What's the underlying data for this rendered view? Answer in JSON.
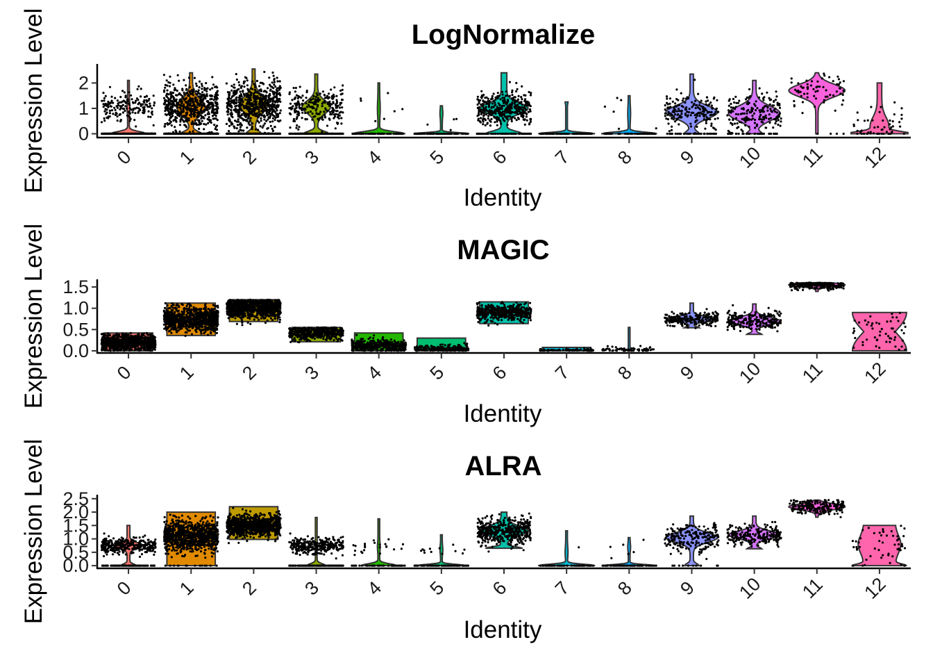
{
  "colors": {
    "palette": [
      "#F8766D",
      "#E18A00",
      "#BE9C00",
      "#8CAB00",
      "#24B700",
      "#00BE70",
      "#00C1AB",
      "#00BBDA",
      "#00ACFC",
      "#8B93FF",
      "#D575FE",
      "#F962DD",
      "#FF65AC"
    ],
    "points": "#000000",
    "axis": "#000000"
  },
  "chart_data": [
    {
      "type": "violin",
      "title": "LogNormalize",
      "xlabel": "Identity",
      "ylabel": "Expression Level",
      "categories": [
        "0",
        "1",
        "2",
        "3",
        "4",
        "5",
        "6",
        "7",
        "8",
        "9",
        "10",
        "11",
        "12"
      ],
      "ylim": [
        -0.15,
        2.75
      ],
      "yticks": [
        0,
        1,
        2
      ],
      "ytick_labels": [
        "0",
        "1",
        "2"
      ],
      "series": [
        {
          "cluster": "0",
          "max": 2.1,
          "zero_frac": 0.6,
          "mode": 1.05,
          "spread": 0.3,
          "density": "high",
          "violin": "spike"
        },
        {
          "cluster": "1",
          "max": 2.4,
          "zero_frac": 0.35,
          "mode": 1.05,
          "spread": 0.45,
          "density": "very-high",
          "violin": "zero-bulge"
        },
        {
          "cluster": "2",
          "max": 2.55,
          "zero_frac": 0.25,
          "mode": 1.15,
          "spread": 0.45,
          "density": "very-high",
          "violin": "zero-bulge"
        },
        {
          "cluster": "3",
          "max": 2.35,
          "zero_frac": 0.45,
          "mode": 1.05,
          "spread": 0.35,
          "density": "high",
          "violin": "zero-bulge"
        },
        {
          "cluster": "4",
          "max": 2.0,
          "zero_frac": 0.9,
          "mode": 1.0,
          "spread": 0.4,
          "density": "low",
          "violin": "spike"
        },
        {
          "cluster": "5",
          "max": 1.1,
          "zero_frac": 0.95,
          "mode": 0.8,
          "spread": 0.25,
          "density": "low",
          "violin": "spike"
        },
        {
          "cluster": "6",
          "max": 2.4,
          "zero_frac": 0.15,
          "mode": 1.0,
          "spread": 0.3,
          "density": "high",
          "violin": "hourglass"
        },
        {
          "cluster": "7",
          "max": 1.25,
          "zero_frac": 0.99,
          "mode": 1.25,
          "spread": 0.1,
          "density": "low",
          "violin": "spike"
        },
        {
          "cluster": "8",
          "max": 1.5,
          "zero_frac": 0.95,
          "mode": 0.8,
          "spread": 0.4,
          "density": "low",
          "violin": "spike"
        },
        {
          "cluster": "9",
          "max": 2.35,
          "zero_frac": 0.2,
          "mode": 0.85,
          "spread": 0.35,
          "density": "medium",
          "violin": "bulb"
        },
        {
          "cluster": "10",
          "max": 2.1,
          "zero_frac": 0.2,
          "mode": 0.8,
          "spread": 0.4,
          "density": "medium",
          "violin": "bulb"
        },
        {
          "cluster": "11",
          "max": 2.4,
          "zero_frac": 0.05,
          "mode": 1.7,
          "spread": 0.35,
          "density": "low",
          "violin": "top-bulb"
        },
        {
          "cluster": "12",
          "max": 2.0,
          "zero_frac": 0.3,
          "mode": 0.3,
          "spread": 0.5,
          "density": "sparse",
          "violin": "bottom-bulb"
        }
      ]
    },
    {
      "type": "violin",
      "title": "MAGIC",
      "xlabel": "Identity",
      "ylabel": "Expression Level",
      "categories": [
        "0",
        "1",
        "2",
        "3",
        "4",
        "5",
        "6",
        "7",
        "8",
        "9",
        "10",
        "11",
        "12"
      ],
      "ylim": [
        -0.05,
        1.68
      ],
      "yticks": [
        0,
        0.5,
        1.0,
        1.5
      ],
      "ytick_labels": [
        "0.0",
        "0.5",
        "1.0",
        "1.5"
      ],
      "series": [
        {
          "cluster": "0",
          "max": 0.42,
          "zero_frac": 0,
          "mode": 0.2,
          "spread": 0.1,
          "density": "very-high",
          "violin": "box"
        },
        {
          "cluster": "1",
          "max": 1.12,
          "zero_frac": 0,
          "mode": 0.75,
          "spread": 0.15,
          "density": "very-high",
          "violin": "box"
        },
        {
          "cluster": "2",
          "max": 1.2,
          "zero_frac": 0,
          "mode": 1.0,
          "spread": 0.12,
          "density": "very-high",
          "violin": "box"
        },
        {
          "cluster": "3",
          "max": 0.55,
          "zero_frac": 0,
          "mode": 0.42,
          "spread": 0.08,
          "density": "high",
          "violin": "box"
        },
        {
          "cluster": "4",
          "max": 0.42,
          "zero_frac": 0,
          "mode": 0.12,
          "spread": 0.08,
          "density": "high",
          "violin": "box"
        },
        {
          "cluster": "5",
          "max": 0.3,
          "zero_frac": 0,
          "mode": 0.04,
          "spread": 0.05,
          "density": "medium",
          "violin": "box"
        },
        {
          "cluster": "6",
          "max": 1.15,
          "zero_frac": 0,
          "mode": 0.9,
          "spread": 0.1,
          "density": "high",
          "violin": "box"
        },
        {
          "cluster": "7",
          "max": 0.08,
          "zero_frac": 0,
          "mode": 0.01,
          "spread": 0.02,
          "density": "low",
          "violin": "box"
        },
        {
          "cluster": "8",
          "max": 0.55,
          "zero_frac": 0,
          "mode": 0.01,
          "spread": 0.05,
          "density": "low",
          "violin": "spike"
        },
        {
          "cluster": "9",
          "max": 1.12,
          "zero_frac": 0,
          "mode": 0.75,
          "spread": 0.08,
          "density": "medium",
          "violin": "bulb"
        },
        {
          "cluster": "10",
          "max": 1.1,
          "zero_frac": 0,
          "mode": 0.7,
          "spread": 0.12,
          "density": "medium",
          "violin": "bulb"
        },
        {
          "cluster": "11",
          "max": 1.6,
          "zero_frac": 0,
          "mode": 1.55,
          "spread": 0.06,
          "density": "medium",
          "violin": "top-bulb"
        },
        {
          "cluster": "12",
          "max": 0.9,
          "zero_frac": 0,
          "mode": 0.5,
          "spread": 0.25,
          "density": "sparse",
          "violin": "hourglass-wide"
        }
      ]
    },
    {
      "type": "violin",
      "title": "ALRA",
      "xlabel": "Identity",
      "ylabel": "Expression Level",
      "categories": [
        "0",
        "1",
        "2",
        "3",
        "4",
        "5",
        "6",
        "7",
        "8",
        "9",
        "10",
        "11",
        "12"
      ],
      "ylim": [
        -0.1,
        2.65
      ],
      "yticks": [
        0,
        0.5,
        1.0,
        1.5,
        2.0,
        2.5
      ],
      "ytick_labels": [
        "0.0",
        "0.5",
        "1.0",
        "1.5",
        "2.0",
        "2.5"
      ],
      "series": [
        {
          "cluster": "0",
          "max": 1.5,
          "zero_frac": 0.25,
          "mode": 0.75,
          "spread": 0.15,
          "density": "high",
          "violin": "zero-bulge"
        },
        {
          "cluster": "1",
          "max": 2.0,
          "zero_frac": 0.02,
          "mode": 1.1,
          "spread": 0.3,
          "density": "very-high",
          "violin": "box"
        },
        {
          "cluster": "2",
          "max": 2.2,
          "zero_frac": 0,
          "mode": 1.5,
          "spread": 0.2,
          "density": "very-high",
          "violin": "box"
        },
        {
          "cluster": "3",
          "max": 1.8,
          "zero_frac": 0.3,
          "mode": 0.75,
          "spread": 0.15,
          "density": "high",
          "violin": "spike"
        },
        {
          "cluster": "4",
          "max": 1.75,
          "zero_frac": 0.6,
          "mode": 0.7,
          "spread": 0.2,
          "density": "low",
          "violin": "spike"
        },
        {
          "cluster": "5",
          "max": 1.15,
          "zero_frac": 0.85,
          "mode": 0.6,
          "spread": 0.2,
          "density": "low",
          "violin": "spike"
        },
        {
          "cluster": "6",
          "max": 2.0,
          "zero_frac": 0,
          "mode": 1.3,
          "spread": 0.25,
          "density": "high",
          "violin": "hourglass"
        },
        {
          "cluster": "7",
          "max": 1.3,
          "zero_frac": 0.98,
          "mode": 0.5,
          "spread": 0.3,
          "density": "low",
          "violin": "spike"
        },
        {
          "cluster": "8",
          "max": 1.05,
          "zero_frac": 0.9,
          "mode": 0.7,
          "spread": 0.2,
          "density": "low",
          "violin": "spike"
        },
        {
          "cluster": "9",
          "max": 1.85,
          "zero_frac": 0.05,
          "mode": 1.05,
          "spread": 0.25,
          "density": "medium",
          "violin": "bulb"
        },
        {
          "cluster": "10",
          "max": 1.85,
          "zero_frac": 0,
          "mode": 1.15,
          "spread": 0.2,
          "density": "medium",
          "violin": "bulb"
        },
        {
          "cluster": "11",
          "max": 2.45,
          "zero_frac": 0,
          "mode": 2.2,
          "spread": 0.15,
          "density": "medium",
          "violin": "top-bulb"
        },
        {
          "cluster": "12",
          "max": 1.5,
          "zero_frac": 0.1,
          "mode": 0.8,
          "spread": 0.45,
          "density": "sparse",
          "violin": "wide"
        }
      ]
    }
  ]
}
